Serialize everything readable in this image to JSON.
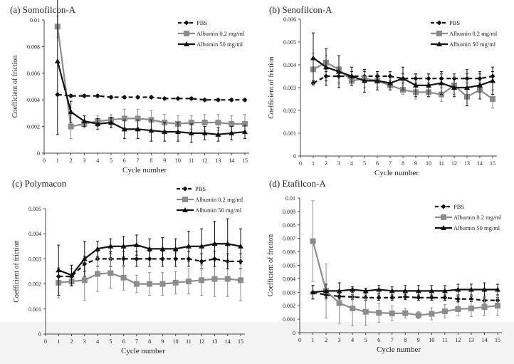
{
  "chart_data": [
    {
      "type": "line",
      "title": "(a) Somofilcon-A",
      "xlabel": "Cycle number",
      "ylabel": "Coefficient of friction",
      "xlim": [
        0,
        15
      ],
      "ylim": [
        0,
        0.01
      ],
      "yticks": [
        "0",
        "0.002",
        "0.004",
        "0.006",
        "0.008",
        "0.01"
      ],
      "ytick_values": [
        0,
        0.002,
        0.004,
        0.006,
        0.008,
        0.01
      ],
      "legend": "top-right",
      "x": [
        1,
        2,
        3,
        4,
        5,
        6,
        7,
        8,
        9,
        10,
        11,
        12,
        13,
        14,
        15
      ],
      "series": [
        {
          "name": "PBS",
          "style": "dashed",
          "marker": "diamond",
          "color": "#111111",
          "values": [
            0.0044,
            0.0043,
            0.0043,
            0.0043,
            0.0042,
            0.0042,
            0.0042,
            0.0042,
            0.0041,
            0.0041,
            0.0041,
            0.004,
            0.004,
            0.004,
            0.004
          ],
          "errors": [
            0.0001,
            0.0001,
            0.0001,
            0.0001,
            0.0001,
            0.0001,
            0.0001,
            0.0001,
            0.0001,
            0.0001,
            0.0001,
            0.0001,
            0.0001,
            0.0001,
            0.0001
          ]
        },
        {
          "name": "Albumin 0.2 mg/ml",
          "style": "solid",
          "marker": "square",
          "color": "#8c8c8c",
          "values": [
            0.0095,
            0.002,
            0.0022,
            0.0024,
            0.0025,
            0.0026,
            0.0026,
            0.0025,
            0.0023,
            0.0022,
            0.0023,
            0.0023,
            0.0023,
            0.0022,
            0.0022
          ],
          "errors": [
            0.0008,
            0.0009,
            0.0003,
            0.0004,
            0.0004,
            0.0007,
            0.0007,
            0.0007,
            0.0006,
            0.0006,
            0.0005,
            0.0006,
            0.0006,
            0.0006,
            0.0007
          ]
        },
        {
          "name": "Albumin 50 mg/ml",
          "style": "solid",
          "marker": "triangle",
          "color": "#111111",
          "values": [
            0.0069,
            0.0031,
            0.0024,
            0.0022,
            0.0023,
            0.0018,
            0.0018,
            0.0017,
            0.0016,
            0.0016,
            0.0015,
            0.0015,
            0.0014,
            0.0015,
            0.0016
          ],
          "errors": [
            0.0055,
            0.0008,
            0.0004,
            0.0004,
            0.0004,
            0.0007,
            0.0007,
            0.0008,
            0.0007,
            0.0007,
            0.0007,
            0.0005,
            0.0005,
            0.0005,
            0.0005
          ]
        }
      ]
    },
    {
      "type": "line",
      "title": "(b) Senofilcon-A",
      "xlabel": "Cycle number",
      "ylabel": "Coefficient of friction",
      "xlim": [
        0,
        15
      ],
      "ylim": [
        0,
        0.006
      ],
      "yticks": [
        "0",
        "0.001",
        "0.002",
        "0.003",
        "0.004",
        "0.005",
        "0.006"
      ],
      "ytick_values": [
        0,
        0.001,
        0.002,
        0.003,
        0.004,
        0.005,
        0.006
      ],
      "legend": "top-right",
      "x": [
        1,
        2,
        3,
        4,
        5,
        6,
        7,
        8,
        9,
        10,
        11,
        12,
        13,
        14,
        15
      ],
      "series": [
        {
          "name": "PBS",
          "style": "dashed",
          "marker": "diamond",
          "color": "#111111",
          "values": [
            0.0032,
            0.0035,
            0.0035,
            0.0035,
            0.0035,
            0.0035,
            0.0035,
            0.0034,
            0.0034,
            0.0034,
            0.0034,
            0.0034,
            0.0034,
            0.0034,
            0.0035
          ],
          "errors": [
            0.0001,
            0.0002,
            0.0003,
            0.0002,
            0.0002,
            0.0002,
            0.0002,
            0.0002,
            0.0002,
            0.0002,
            0.0002,
            0.0002,
            0.0002,
            0.0002,
            0.0002
          ]
        },
        {
          "name": "Albumin 0.2 mg/ml",
          "style": "solid",
          "marker": "square",
          "color": "#8c8c8c",
          "values": [
            0.0038,
            0.0041,
            0.0038,
            0.0033,
            0.0034,
            0.0033,
            0.0031,
            0.0029,
            0.0028,
            0.0028,
            0.0027,
            0.0031,
            0.0026,
            0.0029,
            0.0025
          ],
          "errors": [
            0.0007,
            0.0003,
            0.0006,
            0.0002,
            0.0004,
            0.0003,
            0.0002,
            0.0002,
            0.0003,
            0.0002,
            0.0003,
            0.0004,
            0.0004,
            0.0004,
            0.0004
          ]
        },
        {
          "name": "Albumin 50 mg/ml",
          "style": "solid",
          "marker": "triangle",
          "color": "#111111",
          "values": [
            0.0043,
            0.0039,
            0.0037,
            0.0035,
            0.0033,
            0.0033,
            0.0032,
            0.0034,
            0.0031,
            0.0031,
            0.0032,
            0.003,
            0.003,
            0.0031,
            0.0033
          ],
          "errors": [
            0.0011,
            0.0008,
            0.0007,
            0.0004,
            0.0005,
            0.0004,
            0.0003,
            0.0005,
            0.0005,
            0.0005,
            0.0005,
            0.0004,
            0.0008,
            0.0006,
            0.0006
          ]
        }
      ]
    },
    {
      "type": "line",
      "title": "(c) Polymacon",
      "xlabel": "Cycle number",
      "ylabel": "Coefficient of friction",
      "xlim": [
        0,
        15
      ],
      "ylim": [
        0,
        0.005
      ],
      "yticks": [
        "0",
        "0.001",
        "0.002",
        "0.003",
        "0.004",
        "0.005"
      ],
      "ytick_values": [
        0,
        0.001,
        0.002,
        0.003,
        0.004,
        0.005
      ],
      "legend": "top-right",
      "x": [
        1,
        2,
        3,
        4,
        5,
        6,
        7,
        8,
        9,
        10,
        11,
        12,
        13,
        14,
        15
      ],
      "series": [
        {
          "name": "PBS",
          "style": "dashed",
          "marker": "diamond",
          "color": "#111111",
          "values": [
            0.0023,
            0.0023,
            0.0028,
            0.003,
            0.003,
            0.003,
            0.003,
            0.003,
            0.003,
            0.003,
            0.003,
            0.0029,
            0.003,
            0.0029,
            0.0029
          ],
          "errors": [
            0.0003,
            0.0003,
            0.0003,
            0.0003,
            0.0003,
            0.0003,
            0.0003,
            0.0003,
            0.0003,
            0.0003,
            0.0003,
            0.0003,
            0.0003,
            0.0003,
            0.0003
          ]
        },
        {
          "name": "Albumin 0.2 mg/ml",
          "style": "solid",
          "marker": "square",
          "color": "#8c8c8c",
          "values": [
            0.00205,
            0.0021,
            0.00215,
            0.0024,
            0.00243,
            0.00225,
            0.002,
            0.002,
            0.002,
            0.00205,
            0.0021,
            0.00215,
            0.0022,
            0.0022,
            0.00215
          ],
          "errors": [
            0.0006,
            0.0002,
            0.0008,
            0.0007,
            0.0006,
            0.0005,
            0.00035,
            0.00045,
            0.00045,
            0.00045,
            0.0005,
            0.0006,
            0.0007,
            0.0007,
            0.0008
          ]
        },
        {
          "name": "Albumin 50 mg/ml",
          "style": "solid",
          "marker": "triangle",
          "color": "#111111",
          "values": [
            0.00255,
            0.00235,
            0.003,
            0.0034,
            0.0035,
            0.0035,
            0.00355,
            0.0034,
            0.0034,
            0.0034,
            0.0035,
            0.0035,
            0.0036,
            0.0036,
            0.0035
          ],
          "errors": [
            0.001,
            0.0004,
            0.0007,
            0.0003,
            0.0003,
            0.0004,
            0.0004,
            0.0004,
            0.00045,
            0.0004,
            0.0006,
            0.0007,
            0.0009,
            0.001,
            0.0007
          ]
        }
      ]
    },
    {
      "type": "line",
      "title": "(d) Etafilcon-A",
      "xlabel": "Cycle number",
      "ylabel": "Coefficient of friction",
      "xlim": [
        0,
        15
      ],
      "ylim": [
        0,
        0.01
      ],
      "yticks": [
        "0",
        "0.001",
        "0.002",
        "0.003",
        "0.004",
        "0.005",
        "0.006",
        "0.007",
        "0.008",
        "0.009",
        "0.01"
      ],
      "ytick_values": [
        0,
        0.001,
        0.002,
        0.003,
        0.004,
        0.005,
        0.006,
        0.007,
        0.008,
        0.009,
        0.01
      ],
      "legend": "top-right",
      "x": [
        1,
        2,
        3,
        4,
        5,
        6,
        7,
        8,
        9,
        10,
        11,
        12,
        13,
        14,
        15
      ],
      "series": [
        {
          "name": "PBS",
          "style": "dashed",
          "marker": "diamond",
          "color": "#111111",
          "values": [
            0.003,
            0.0028,
            0.0027,
            0.00265,
            0.0026,
            0.0026,
            0.0026,
            0.00265,
            0.0026,
            0.0026,
            0.0026,
            0.0025,
            0.0025,
            0.0024,
            0.0024
          ],
          "errors": [
            0.0005,
            0.0003,
            0.0002,
            0.0002,
            0.0002,
            0.0002,
            0.0002,
            0.0002,
            0.0002,
            0.0002,
            0.0002,
            0.0002,
            0.0002,
            0.0002,
            0.0002
          ]
        },
        {
          "name": "Albumin 0.2 mg/ml",
          "style": "solid",
          "marker": "square",
          "color": "#8c8c8c",
          "values": [
            0.0068,
            0.0031,
            0.0022,
            0.0018,
            0.00155,
            0.00148,
            0.00143,
            0.00145,
            0.0013,
            0.0014,
            0.00158,
            0.00175,
            0.0018,
            0.0019,
            0.002
          ],
          "errors": [
            0.003,
            0.002,
            0.0015,
            0.0013,
            0.001,
            0.0007,
            0.00055,
            0.00035,
            0.00025,
            0.00045,
            0.0005,
            0.0005,
            0.0006,
            0.0006,
            0.0007
          ]
        },
        {
          "name": "Albumin 50 mg/ml",
          "style": "solid",
          "marker": "triangle",
          "color": "#111111",
          "values": [
            0.003,
            0.0031,
            0.0031,
            0.0032,
            0.0031,
            0.0032,
            0.0031,
            0.0031,
            0.0031,
            0.0031,
            0.0031,
            0.0032,
            0.0032,
            0.0032,
            0.0032
          ],
          "errors": [
            0.0005,
            0.0005,
            0.0006,
            0.0002,
            0.0002,
            0.0003,
            0.0003,
            0.0004,
            0.0004,
            0.0004,
            0.0004,
            0.0004,
            0.0004,
            0.0005,
            0.0004
          ]
        }
      ]
    }
  ]
}
